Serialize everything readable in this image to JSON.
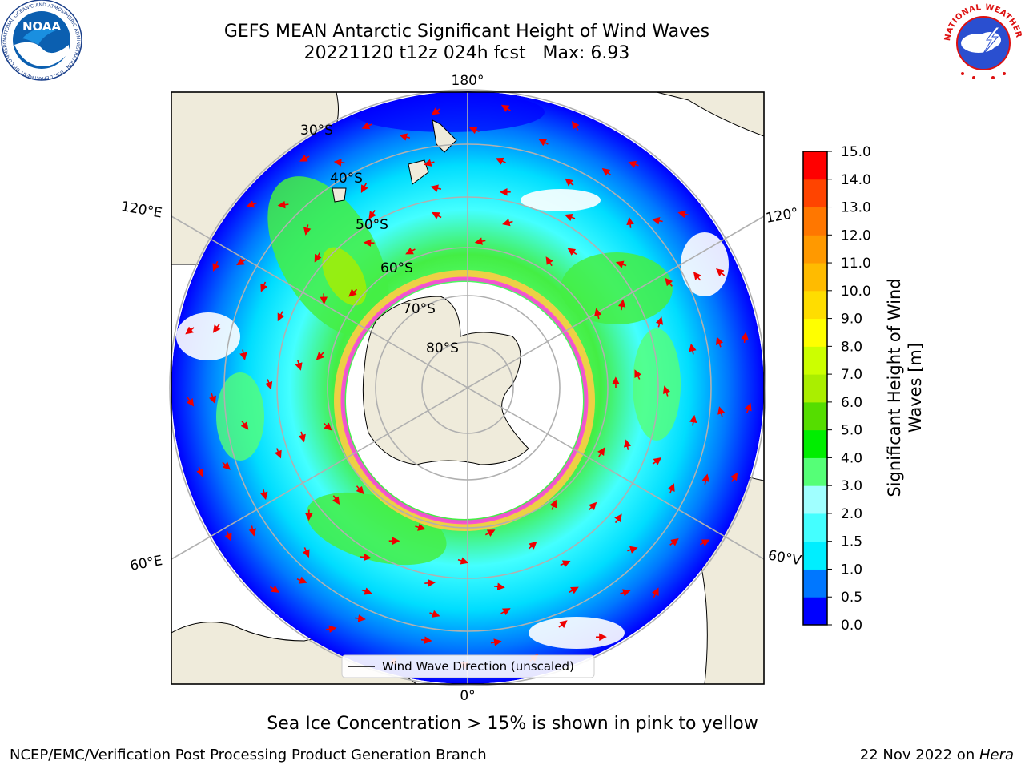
{
  "header": {
    "title": "GEFS MEAN Antarctic Significant Height of Wind Waves",
    "subtitle": "20221120 t12z 024h fcst   Max: 6.93"
  },
  "logos": {
    "noaa_text": "NOAA",
    "noaa_ring_text": "NATIONAL OCEANIC AND ATMOSPHERIC ADMINISTRATION · U.S. DEPARTMENT OF COMMERCE",
    "nws_ring_text": "NATIONAL WEATHER SERVICE"
  },
  "map": {
    "projection": "south-polar-stereographic",
    "lat_labels": [
      "30°S",
      "40°S",
      "50°S",
      "60°S",
      "70°S",
      "80°S"
    ],
    "lon_labels": {
      "top": "180°",
      "bottom": "0°",
      "left_upper": "120°E",
      "left_lower": "60°E",
      "right_upper": "120°",
      "right_lower": "60°V"
    },
    "legend_label": "Wind Wave Direction (unscaled)",
    "colors": {
      "land": "#efebdb",
      "ocean_low": "#0000ff",
      "ice_edge_pink": "#ff44dd",
      "ice_edge_yellow": "#ffcc44",
      "arrow": "#ee0000"
    }
  },
  "colorbar": {
    "label_line1": "Significant Height of Wind",
    "label_line2": "Waves [m]",
    "ticks": [
      "0.0",
      "0.5",
      "1.0",
      "1.5",
      "2.0",
      "3.0",
      "4.0",
      "5.0",
      "6.0",
      "7.0",
      "8.0",
      "9.0",
      "10.0",
      "11.0",
      "12.0",
      "13.0",
      "14.0",
      "15.0"
    ],
    "colors": [
      "#0000ff",
      "#0077ff",
      "#00eeff",
      "#44ffff",
      "#a0ffff",
      "#55ff77",
      "#00ee00",
      "#55dd00",
      "#aaee00",
      "#ccff00",
      "#ffff00",
      "#ffdd00",
      "#ffbb00",
      "#ff9900",
      "#ff7700",
      "#ff4400",
      "#ff0000"
    ]
  },
  "caption": "Sea Ice Concentration > 15% is shown in pink to yellow",
  "footer": {
    "left": "NCEP/EMC/Verification Post Processing Product Generation Branch",
    "right_date": "22 Nov 2022 on ",
    "right_host": "Hera"
  }
}
